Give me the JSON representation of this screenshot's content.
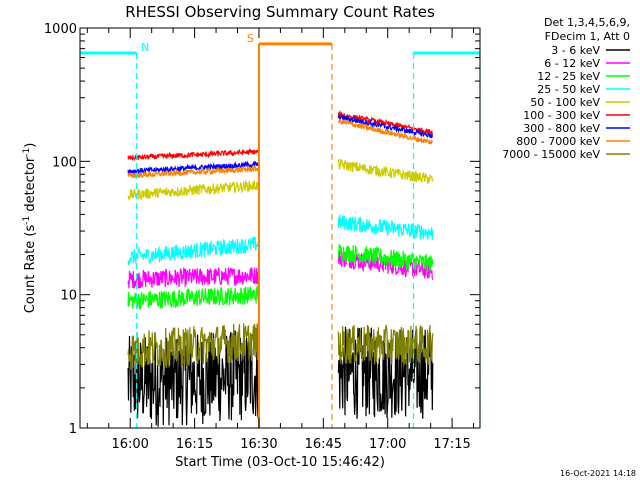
{
  "chart_data": {
    "type": "line",
    "title": "RHESSI Observing Summary Count Rates",
    "xlabel": "Start Time (03-Oct-10 15:46:42)",
    "ylabel": "Count Rate (s",
    "ylabel_sup1": "-1",
    "ylabel_mid": " detector",
    "ylabel_sup2": "-1",
    "ylabel_end": ")",
    "y_scale": "log",
    "ylim": [
      1,
      1000
    ],
    "xlim_minutes": [
      -11.7,
      81.5
    ],
    "x_ticks": [
      {
        "label": "16:00",
        "minute": 0
      },
      {
        "label": "16:15",
        "minute": 15
      },
      {
        "label": "16:30",
        "minute": 30
      },
      {
        "label": "16:45",
        "minute": 45
      },
      {
        "label": "17:00",
        "minute": 60
      },
      {
        "label": "17:15",
        "minute": 75
      }
    ],
    "y_ticks": [
      {
        "label": "1",
        "value": 1
      },
      {
        "label": "10",
        "value": 10
      },
      {
        "label": "100",
        "value": 100
      },
      {
        "label": "1000",
        "value": 1000
      }
    ],
    "legend_header": [
      "Det 1,3,4,5,6,9,",
      "FDecim 1, Att 0"
    ],
    "legend_position": "top-right, outside plot",
    "segments": [
      [
        -0.5,
        30
      ],
      [
        48.5,
        70.5
      ]
    ],
    "series": [
      {
        "name": "3 - 6 keV",
        "color": "#000000",
        "seg1": [
          2.2,
          2.5
        ],
        "seg2": [
          2.6,
          2.6
        ],
        "noise": 0.35
      },
      {
        "name": "6 - 12 keV",
        "color": "#ff00ff",
        "seg1": [
          13,
          14
        ],
        "seg2": [
          19,
          15
        ],
        "noise": 0.07
      },
      {
        "name": "12 - 25 keV",
        "color": "#00ff00",
        "seg1": [
          9,
          10
        ],
        "seg2": [
          21,
          17
        ],
        "noise": 0.07
      },
      {
        "name": "25 - 50 keV",
        "color": "#00ffff",
        "seg1": [
          19,
          24
        ],
        "seg2": [
          35,
          29
        ],
        "noise": 0.06
      },
      {
        "name": "50 - 100 keV",
        "color": "#cccc00",
        "seg1": [
          56,
          66
        ],
        "seg2": [
          95,
          73
        ],
        "noise": 0.04
      },
      {
        "name": "100 - 300 keV",
        "color": "#ff0000",
        "seg1": [
          106,
          118
        ],
        "seg2": [
          225,
          165
        ],
        "noise": 0.02
      },
      {
        "name": "300 - 800 keV",
        "color": "#0000ff",
        "seg1": [
          84,
          95
        ],
        "seg2": [
          215,
          155
        ],
        "noise": 0.02
      },
      {
        "name": "800 - 7000 keV",
        "color": "#ff8000",
        "seg1": [
          78,
          88
        ],
        "seg2": [
          200,
          138
        ],
        "noise": 0.02
      },
      {
        "name": "7000 - 15000 keV",
        "color": "#808000",
        "seg1": [
          3.8,
          4.5
        ],
        "seg2": [
          4.2,
          4.2
        ],
        "noise": 0.15
      }
    ],
    "markers": {
      "night": {
        "label": "N",
        "color": "#00ffff",
        "bars": [
          [
            -11.7,
            1.5
          ],
          [
            66,
            81.5
          ]
        ],
        "bar_level": 650,
        "lines": [
          1.5,
          66,
          81.5
        ],
        "label_minute": 3.5
      },
      "saa": {
        "label": "S",
        "color": "#ff8000",
        "bars": [
          [
            30,
            47
          ]
        ],
        "bar_level": 760,
        "lines": [
          30,
          47
        ],
        "label_minute": 28
      }
    }
  },
  "timestamp": "16-Oct-2021 14:18"
}
